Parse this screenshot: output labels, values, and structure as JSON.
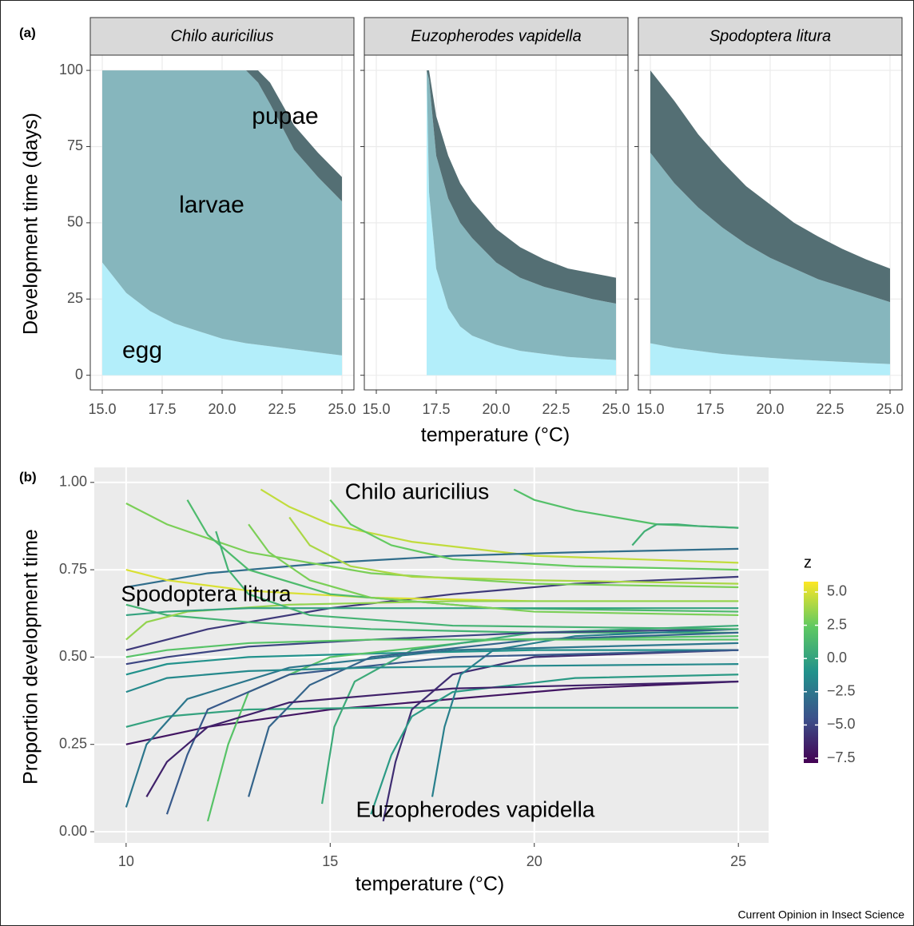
{
  "chart_data": [
    {
      "type": "area",
      "panel_label": "(a)",
      "ylabel": "Development time (days)",
      "xlabel": "temperature (°C)",
      "xlim": [
        14.5,
        25.5
      ],
      "ylim": [
        -4.8,
        105
      ],
      "xticks": [
        {
          "value": 15,
          "label": "15.0"
        },
        17.5,
        {
          "value": 20,
          "label": "20.0"
        },
        22.5,
        {
          "value": 25,
          "label": "25.0"
        }
      ],
      "yticks": [
        0,
        25,
        50,
        75,
        100
      ],
      "grid": true,
      "facets": [
        {
          "title": "Chilo auricilius",
          "x": [
            15,
            16,
            17,
            18,
            19,
            20,
            21,
            21.5,
            22,
            23,
            24,
            25
          ],
          "series": [
            {
              "name": "egg",
              "color": "#b3eefa",
              "values": [
                37,
                27,
                21,
                17,
                14.5,
                12,
                10.5,
                10,
                9.5,
                8.5,
                7.5,
                6.5
              ]
            },
            {
              "name": "larvae",
              "color": "#86b6bd",
              "values": [
                63,
                73,
                79,
                83,
                85.5,
                88,
                89.5,
                86,
                79.5,
                65.5,
                57.5,
                50.5
              ]
            },
            {
              "name": "pupae",
              "color": "#546f74",
              "values": [
                0,
                0,
                0,
                0,
                0,
                0,
                0,
                4,
                7,
                8,
                8,
                8
              ]
            }
          ]
        },
        {
          "title": "Euzopherodes vapidella",
          "x": [
            17.1,
            17.2,
            17.5,
            18,
            18.5,
            19,
            20,
            21,
            22,
            23,
            24,
            25
          ],
          "series": [
            {
              "name": "egg",
              "color": "#b3eefa",
              "values": [
                100,
                60,
                35,
                22,
                16,
                13,
                10,
                8,
                7,
                6,
                5.5,
                5
              ]
            },
            {
              "name": "larvae",
              "color": "#86b6bd",
              "values": [
                0,
                37,
                37,
                36,
                34,
                32,
                27,
                24,
                22,
                21,
                19.5,
                18.5
              ]
            },
            {
              "name": "pupae",
              "color": "#546f74",
              "values": [
                0,
                3,
                13,
                14,
                13,
                12,
                11,
                10,
                9,
                8,
                8.5,
                8.5
              ]
            }
          ]
        },
        {
          "title": "Spodoptera litura",
          "x": [
            15,
            16,
            17,
            18,
            19,
            20,
            21,
            22,
            23,
            24,
            25
          ],
          "series": [
            {
              "name": "egg",
              "color": "#b3eefa",
              "values": [
                10.5,
                9,
                8,
                7,
                6.3,
                5.7,
                5.2,
                4.8,
                4.4,
                4,
                3.7
              ]
            },
            {
              "name": "larvae",
              "color": "#86b6bd",
              "values": [
                62.5,
                54,
                47,
                41.5,
                36.7,
                32.8,
                29.8,
                26.7,
                24.6,
                22.5,
                20.3
              ]
            },
            {
              "name": "pupae",
              "color": "#546f74",
              "values": [
                27,
                27,
                24,
                21.5,
                19,
                17.5,
                15,
                14,
                12.5,
                11.5,
                11
              ]
            }
          ]
        }
      ]
    },
    {
      "type": "line",
      "panel_label": "(b)",
      "ylabel": "Proportion development time",
      "xlabel": "temperature (°C)",
      "xlim": [
        9.22,
        25.74
      ],
      "ylim": [
        -0.032,
        1.043
      ],
      "xticks": [
        10,
        15,
        20,
        25
      ],
      "yticks": [
        {
          "value": 0,
          "label": "0.00"
        },
        0.25,
        {
          "value": 0.5,
          "label": "0.50"
        },
        0.75,
        {
          "value": 1,
          "label": "1.00"
        }
      ],
      "grid": true,
      "colormap": "viridis",
      "legend_title": "z",
      "zlim": [
        -7.86,
        5.78
      ],
      "zticks": [
        {
          "value": 5,
          "label": "5.0"
        },
        2.5,
        {
          "value": 0,
          "label": "0.0"
        },
        {
          "value": -2.5,
          "label": "−2.5"
        },
        {
          "value": -5,
          "label": "−5.0"
        },
        {
          "value": -7.5,
          "label": "−7.5"
        }
      ],
      "annotations": [
        {
          "text": "Chilo auricilius",
          "color": "#6cc15a"
        },
        {
          "text": "Spodoptera litura",
          "color": "#4fae78"
        },
        {
          "text": "Euzopherodes vapidella",
          "color": "#3a2a70"
        }
      ],
      "lines": [
        {
          "z": 4.5,
          "x": [
            13.3,
            14,
            15,
            17,
            20,
            25
          ],
          "values": [
            0.98,
            0.93,
            0.88,
            0.83,
            0.79,
            0.77
          ]
        },
        {
          "z": 1.8,
          "x": [
            19.5,
            20,
            21,
            22,
            23,
            25
          ],
          "values": [
            0.98,
            0.95,
            0.92,
            0.9,
            0.88,
            0.87
          ]
        },
        {
          "z": -3,
          "x": [
            10,
            12,
            15,
            18,
            21,
            25
          ],
          "values": [
            0.7,
            0.74,
            0.77,
            0.79,
            0.8,
            0.81
          ]
        },
        {
          "z": -5.5,
          "x": [
            10,
            12,
            15,
            18,
            21,
            25
          ],
          "values": [
            0.52,
            0.58,
            0.64,
            0.68,
            0.71,
            0.73
          ]
        },
        {
          "z": -7,
          "x": [
            10,
            12,
            15,
            18,
            21,
            25
          ],
          "values": [
            0.25,
            0.3,
            0.35,
            0.38,
            0.41,
            0.43
          ]
        },
        {
          "z": 0,
          "x": [
            10,
            11,
            13,
            16,
            20,
            25
          ],
          "values": [
            0.3,
            0.33,
            0.35,
            0.355,
            0.355,
            0.355
          ]
        },
        {
          "z": 3,
          "x": [
            10,
            11,
            13,
            16,
            20,
            25
          ],
          "values": [
            0.94,
            0.88,
            0.8,
            0.74,
            0.71,
            0.7
          ]
        },
        {
          "z": 5,
          "x": [
            10,
            11,
            13,
            16,
            20,
            25
          ],
          "values": [
            0.75,
            0.72,
            0.69,
            0.67,
            0.66,
            0.66
          ]
        },
        {
          "z": 1,
          "x": [
            10,
            11,
            13,
            16,
            20,
            25
          ],
          "values": [
            0.65,
            0.62,
            0.6,
            0.58,
            0.57,
            0.57
          ]
        },
        {
          "z": -1,
          "x": [
            10,
            11,
            13,
            16,
            20,
            25
          ],
          "values": [
            0.45,
            0.48,
            0.5,
            0.51,
            0.52,
            0.52
          ]
        },
        {
          "z": -6,
          "x": [
            16.3,
            16.6,
            17,
            18,
            20,
            25
          ],
          "values": [
            0.03,
            0.2,
            0.35,
            0.45,
            0.5,
            0.52
          ]
        },
        {
          "z": -2,
          "x": [
            17.5,
            17.8,
            18.2,
            19,
            21,
            25
          ],
          "values": [
            0.1,
            0.3,
            0.45,
            0.52,
            0.56,
            0.58
          ]
        },
        {
          "z": 2,
          "x": [
            12,
            12.5,
            13,
            15,
            19,
            25
          ],
          "values": [
            0.03,
            0.25,
            0.4,
            0.5,
            0.55,
            0.56
          ]
        },
        {
          "z": -4,
          "x": [
            11,
            11.5,
            12,
            14,
            18,
            25
          ],
          "values": [
            0.05,
            0.22,
            0.35,
            0.45,
            0.5,
            0.52
          ]
        },
        {
          "z": 0.5,
          "x": [
            14.8,
            15.1,
            15.6,
            17,
            20,
            25
          ],
          "values": [
            0.08,
            0.3,
            0.43,
            0.52,
            0.57,
            0.59
          ]
        },
        {
          "z": -2.5,
          "x": [
            10,
            10.5,
            11.5,
            14,
            18,
            25
          ],
          "values": [
            0.07,
            0.25,
            0.38,
            0.47,
            0.52,
            0.54
          ]
        },
        {
          "z": 3.5,
          "x": [
            10,
            10.5,
            11.5,
            14,
            18,
            25
          ],
          "values": [
            0.55,
            0.6,
            0.63,
            0.65,
            0.66,
            0.66
          ]
        },
        {
          "z": 1.5,
          "x": [
            11.5,
            12,
            13,
            15,
            19,
            25
          ],
          "values": [
            0.95,
            0.85,
            0.75,
            0.68,
            0.64,
            0.63
          ]
        },
        {
          "z": -3.5,
          "x": [
            13,
            13.5,
            14.5,
            16,
            20,
            25
          ],
          "values": [
            0.1,
            0.3,
            0.42,
            0.5,
            0.55,
            0.57
          ]
        },
        {
          "z": 2.5,
          "x": [
            15,
            15.5,
            16.5,
            18,
            21,
            25
          ],
          "values": [
            0.95,
            0.88,
            0.82,
            0.78,
            0.76,
            0.75
          ]
        },
        {
          "z": -1.5,
          "x": [
            10,
            11,
            13,
            16,
            20,
            25
          ],
          "values": [
            0.4,
            0.44,
            0.46,
            0.47,
            0.475,
            0.48
          ]
        },
        {
          "z": 0,
          "x": [
            10,
            11,
            13,
            16,
            20,
            25
          ],
          "values": [
            0.62,
            0.63,
            0.64,
            0.64,
            0.64,
            0.64
          ]
        },
        {
          "z": 4,
          "x": [
            14,
            14.5,
            15.5,
            17,
            20,
            25
          ],
          "values": [
            0.9,
            0.82,
            0.76,
            0.73,
            0.72,
            0.71
          ]
        },
        {
          "z": -5,
          "x": [
            10,
            11,
            13,
            16,
            20,
            25
          ],
          "values": [
            0.48,
            0.5,
            0.53,
            0.55,
            0.57,
            0.58
          ]
        },
        {
          "z": 1,
          "x": [
            12.2,
            12.5,
            13,
            14.5,
            18,
            25
          ],
          "values": [
            0.86,
            0.75,
            0.68,
            0.62,
            0.59,
            0.58
          ]
        },
        {
          "z": -0.5,
          "x": [
            16,
            16.5,
            17,
            18,
            21,
            25
          ],
          "values": [
            0.05,
            0.22,
            0.33,
            0.4,
            0.44,
            0.45
          ]
        },
        {
          "z": 2,
          "x": [
            10,
            11,
            13,
            16,
            20,
            25
          ],
          "values": [
            0.5,
            0.52,
            0.54,
            0.55,
            0.55,
            0.55
          ]
        },
        {
          "z": 3,
          "x": [
            13,
            13.5,
            14.5,
            16,
            20,
            25
          ],
          "values": [
            0.88,
            0.8,
            0.72,
            0.67,
            0.63,
            0.62
          ]
        },
        {
          "z": -6.5,
          "x": [
            10.5,
            11,
            12,
            14,
            18,
            25
          ],
          "values": [
            0.1,
            0.2,
            0.3,
            0.37,
            0.41,
            0.43
          ]
        },
        {
          "z": 0.8,
          "x": [
            22.4,
            22.7,
            23,
            23.5,
            24,
            25
          ],
          "values": [
            0.82,
            0.86,
            0.88,
            0.88,
            0.875,
            0.87
          ]
        }
      ]
    }
  ],
  "credit": "Current Opinion in Insect Science"
}
